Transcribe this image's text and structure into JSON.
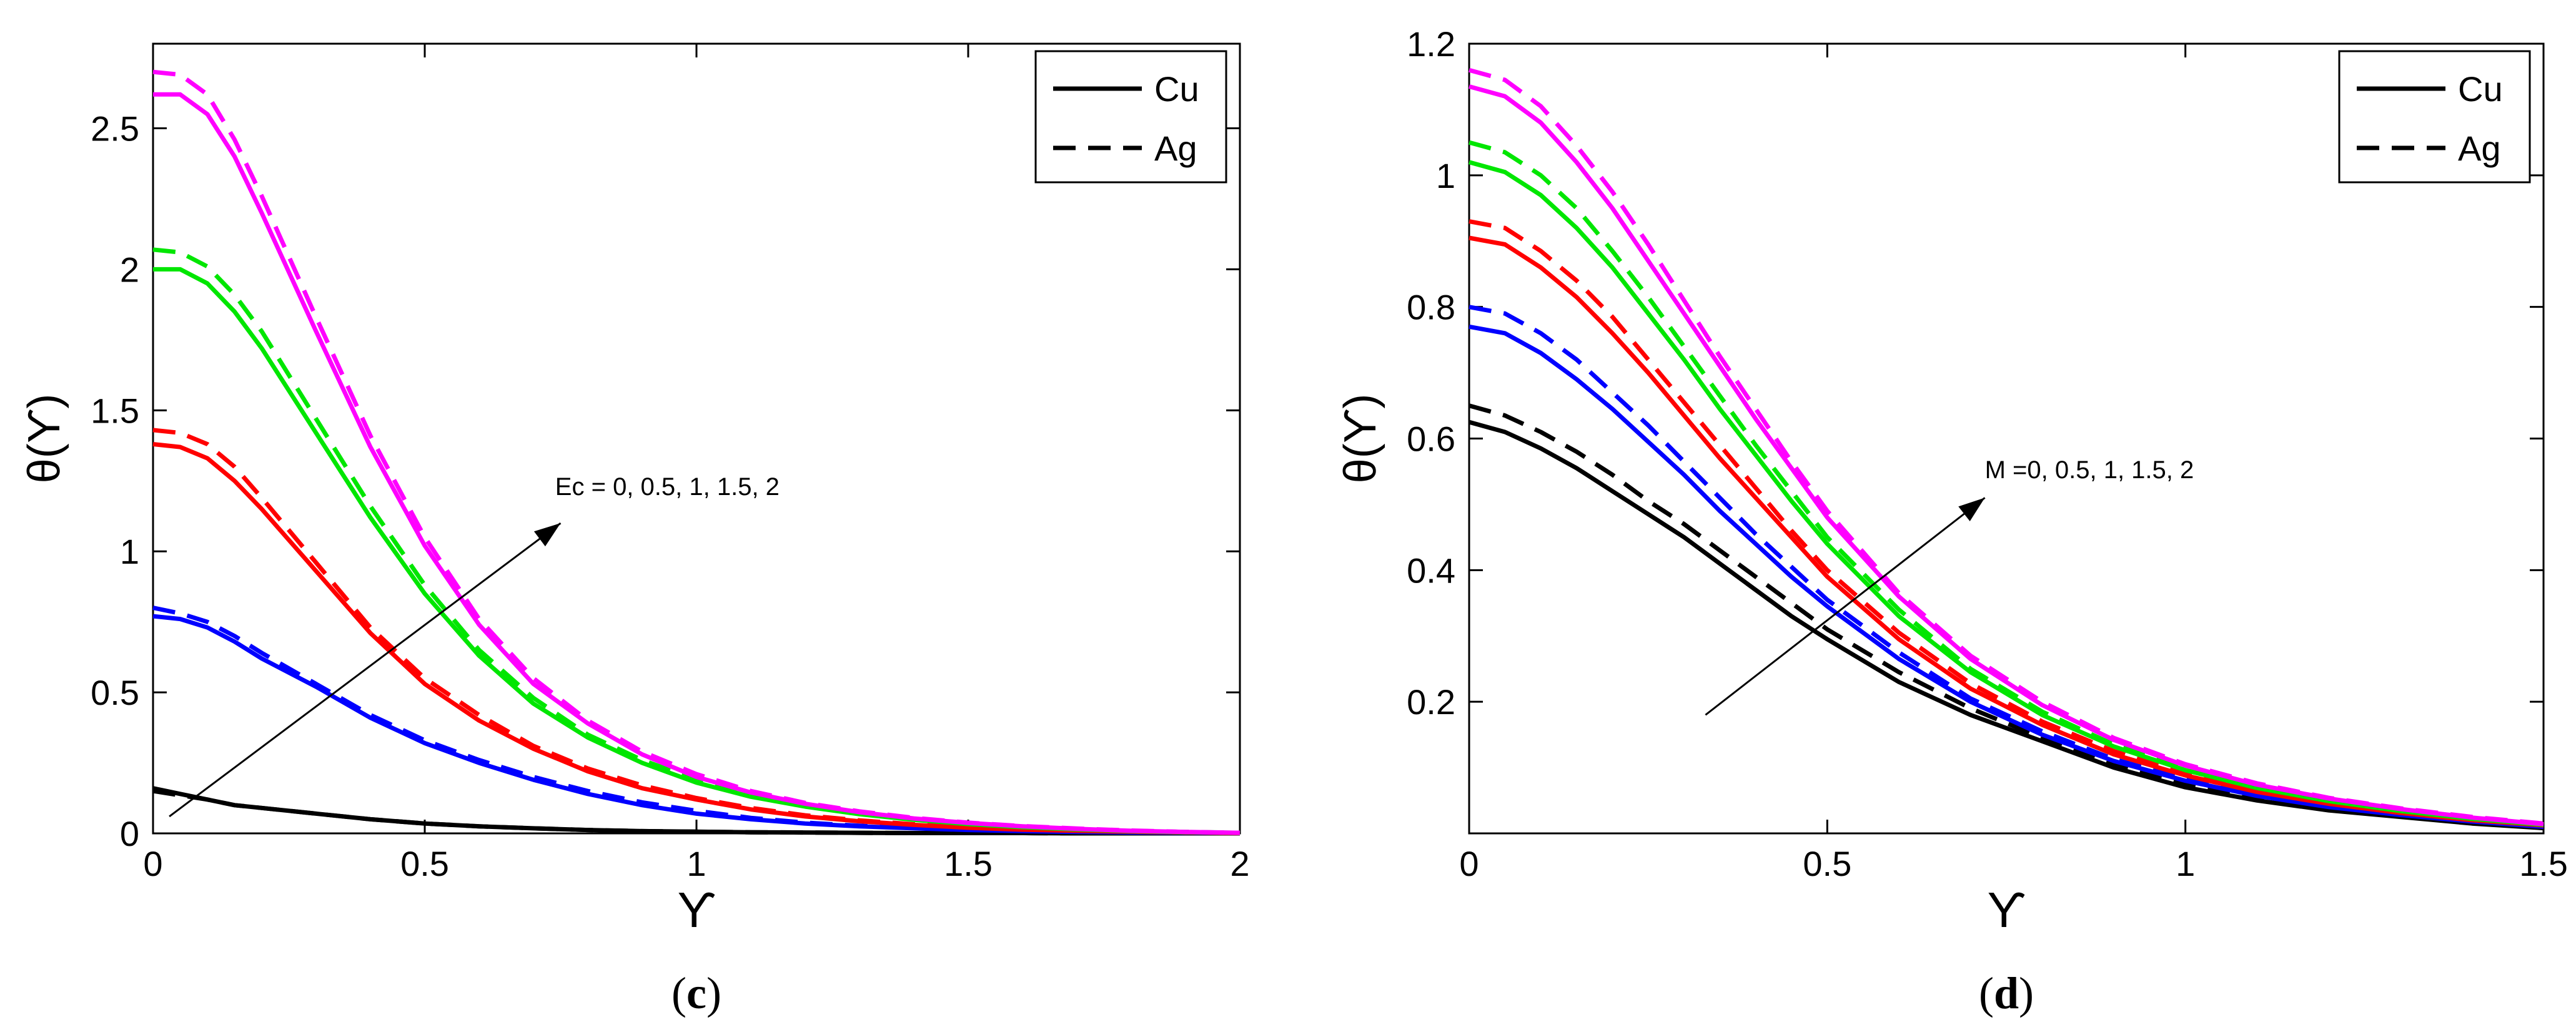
{
  "chart_data": [
    {
      "type": "line",
      "panel": "c",
      "caption": {
        "open": "(",
        "letter": "c",
        "close": ")"
      },
      "xlabel": "ϒ",
      "ylabel": "θ(ϒ)",
      "xlim": [
        0,
        2
      ],
      "ylim": [
        0,
        2.8
      ],
      "xticks": [
        0,
        0.5,
        1,
        1.5,
        2
      ],
      "xtick_labels": [
        "0",
        "0.5",
        "1",
        "1.5",
        "2"
      ],
      "yticks": [
        0,
        0.5,
        1,
        1.5,
        2,
        2.5
      ],
      "ytick_labels": [
        "0",
        "0.5",
        "1",
        "1.5",
        "2",
        "2.5"
      ],
      "legend": {
        "position": "top-right",
        "entries": [
          {
            "label": "Cu",
            "style": "solid"
          },
          {
            "label": "Ag",
            "style": "dashed"
          }
        ]
      },
      "annotation": {
        "text": "Ec = 0, 0.5, 1, 1.5, 2",
        "arrow_from": [
          0.03,
          0.06
        ],
        "arrow_to": [
          0.75,
          1.1
        ],
        "text_at": [
          0.74,
          1.2
        ]
      },
      "x": [
        0,
        0.05,
        0.1,
        0.15,
        0.2,
        0.3,
        0.4,
        0.5,
        0.6,
        0.7,
        0.8,
        0.9,
        1.0,
        1.1,
        1.2,
        1.3,
        1.4,
        1.5,
        1.6,
        1.7,
        1.8,
        1.9,
        2.0
      ],
      "series": [
        {
          "name": "Cu, Ec = 0",
          "fluid": "Cu",
          "param": "0",
          "color": "#000000",
          "dash": "solid",
          "values": [
            0.16,
            0.14,
            0.12,
            0.1,
            0.09,
            0.07,
            0.05,
            0.035,
            0.025,
            0.018,
            0.012,
            0.008,
            0.006,
            0.004,
            0.003,
            0.002,
            0.001,
            0.001,
            0.001,
            0.0,
            0.0,
            0.0,
            0.0
          ]
        },
        {
          "name": "Ag, Ec = 0",
          "fluid": "Ag",
          "param": "0",
          "color": "#000000",
          "dash": "dashed",
          "values": [
            0.15,
            0.135,
            0.12,
            0.1,
            0.09,
            0.07,
            0.05,
            0.035,
            0.025,
            0.018,
            0.012,
            0.008,
            0.006,
            0.004,
            0.003,
            0.002,
            0.001,
            0.001,
            0.001,
            0.0,
            0.0,
            0.0,
            0.0
          ]
        },
        {
          "name": "Cu, Ec = 0.5",
          "fluid": "Cu",
          "param": "0.5",
          "color": "#0000ff",
          "dash": "solid",
          "values": [
            0.77,
            0.76,
            0.73,
            0.68,
            0.62,
            0.52,
            0.41,
            0.32,
            0.25,
            0.19,
            0.14,
            0.1,
            0.07,
            0.05,
            0.035,
            0.025,
            0.018,
            0.012,
            0.008,
            0.005,
            0.003,
            0.002,
            0.001
          ]
        },
        {
          "name": "Ag, Ec = 0.5",
          "fluid": "Ag",
          "param": "0.5",
          "color": "#0000ff",
          "dash": "dashed",
          "values": [
            0.8,
            0.78,
            0.75,
            0.7,
            0.64,
            0.53,
            0.42,
            0.33,
            0.26,
            0.2,
            0.15,
            0.11,
            0.08,
            0.055,
            0.038,
            0.027,
            0.019,
            0.013,
            0.009,
            0.006,
            0.004,
            0.002,
            0.001
          ]
        },
        {
          "name": "Cu, Ec = 1",
          "fluid": "Cu",
          "param": "1",
          "color": "#ff0000",
          "dash": "solid",
          "values": [
            1.38,
            1.37,
            1.33,
            1.25,
            1.15,
            0.93,
            0.71,
            0.53,
            0.4,
            0.3,
            0.22,
            0.16,
            0.12,
            0.085,
            0.06,
            0.043,
            0.03,
            0.02,
            0.013,
            0.009,
            0.006,
            0.003,
            0.001
          ]
        },
        {
          "name": "Ag, Ec = 1",
          "fluid": "Ag",
          "param": "1",
          "color": "#ff0000",
          "dash": "dashed",
          "values": [
            1.43,
            1.42,
            1.38,
            1.3,
            1.19,
            0.96,
            0.73,
            0.55,
            0.42,
            0.31,
            0.23,
            0.17,
            0.125,
            0.09,
            0.064,
            0.046,
            0.032,
            0.022,
            0.015,
            0.01,
            0.006,
            0.003,
            0.001
          ]
        },
        {
          "name": "Cu, Ec = 1.5",
          "fluid": "Cu",
          "param": "1.5",
          "color": "#00e600",
          "dash": "solid",
          "values": [
            2.0,
            2.0,
            1.95,
            1.85,
            1.72,
            1.42,
            1.12,
            0.85,
            0.63,
            0.46,
            0.34,
            0.25,
            0.18,
            0.13,
            0.095,
            0.068,
            0.048,
            0.033,
            0.022,
            0.014,
            0.008,
            0.004,
            0.002
          ]
        },
        {
          "name": "Ag, Ec = 1.5",
          "fluid": "Ag",
          "param": "1.5",
          "color": "#00e600",
          "dash": "dashed",
          "values": [
            2.07,
            2.06,
            2.01,
            1.91,
            1.78,
            1.47,
            1.16,
            0.88,
            0.65,
            0.48,
            0.35,
            0.26,
            0.19,
            0.14,
            0.1,
            0.072,
            0.05,
            0.035,
            0.023,
            0.015,
            0.009,
            0.005,
            0.002
          ]
        },
        {
          "name": "Cu, Ec = 2",
          "fluid": "Cu",
          "param": "2",
          "color": "#ff00ff",
          "dash": "solid",
          "values": [
            2.62,
            2.62,
            2.55,
            2.4,
            2.2,
            1.78,
            1.37,
            1.02,
            0.74,
            0.53,
            0.39,
            0.28,
            0.2,
            0.145,
            0.105,
            0.075,
            0.053,
            0.037,
            0.025,
            0.016,
            0.009,
            0.005,
            0.002
          ]
        },
        {
          "name": "Ag, Ec = 2",
          "fluid": "Ag",
          "param": "2",
          "color": "#ff00ff",
          "dash": "dashed",
          "values": [
            2.7,
            2.69,
            2.62,
            2.46,
            2.26,
            1.83,
            1.41,
            1.05,
            0.76,
            0.55,
            0.4,
            0.29,
            0.21,
            0.15,
            0.108,
            0.078,
            0.055,
            0.038,
            0.026,
            0.017,
            0.01,
            0.005,
            0.002
          ]
        }
      ]
    },
    {
      "type": "line",
      "panel": "d",
      "caption": {
        "open": "(",
        "letter": "d",
        "close": ")"
      },
      "xlabel": "ϒ",
      "ylabel": "θ(ϒ)",
      "xlim": [
        0,
        1.5
      ],
      "ylim": [
        0,
        1.2
      ],
      "xticks": [
        0,
        0.5,
        1,
        1.5
      ],
      "xtick_labels": [
        "0",
        "0.5",
        "1",
        "1.5"
      ],
      "yticks": [
        0.2,
        0.4,
        0.6,
        0.8,
        1.0,
        1.2
      ],
      "ytick_labels": [
        "0.2",
        "0.4",
        "0.6",
        "0.8",
        "1",
        "1.2"
      ],
      "legend": {
        "position": "top-right",
        "entries": [
          {
            "label": "Cu",
            "style": "solid"
          },
          {
            "label": "Ag",
            "style": "dashed"
          }
        ]
      },
      "annotation": {
        "text": "M =0, 0.5, 1, 1.5, 2",
        "arrow_from": [
          0.33,
          0.18
        ],
        "arrow_to": [
          0.72,
          0.51
        ],
        "text_at": [
          0.72,
          0.54
        ]
      },
      "x": [
        0,
        0.05,
        0.1,
        0.15,
        0.2,
        0.25,
        0.3,
        0.35,
        0.4,
        0.45,
        0.5,
        0.6,
        0.7,
        0.8,
        0.9,
        1.0,
        1.1,
        1.2,
        1.3,
        1.4,
        1.5
      ],
      "series": [
        {
          "name": "Cu, M = 0",
          "fluid": "Cu",
          "param": "0",
          "color": "#000000",
          "dash": "solid",
          "values": [
            0.625,
            0.61,
            0.585,
            0.555,
            0.52,
            0.485,
            0.45,
            0.41,
            0.37,
            0.33,
            0.295,
            0.23,
            0.18,
            0.14,
            0.1,
            0.07,
            0.05,
            0.035,
            0.025,
            0.015,
            0.008
          ]
        },
        {
          "name": "Ag, M = 0",
          "fluid": "Ag",
          "param": "0",
          "color": "#000000",
          "dash": "dashed",
          "values": [
            0.65,
            0.635,
            0.61,
            0.58,
            0.545,
            0.505,
            0.47,
            0.43,
            0.39,
            0.35,
            0.31,
            0.245,
            0.19,
            0.145,
            0.105,
            0.075,
            0.053,
            0.037,
            0.026,
            0.016,
            0.009
          ]
        },
        {
          "name": "Cu, M = 0.5",
          "fluid": "Cu",
          "param": "0.5",
          "color": "#0000ff",
          "dash": "solid",
          "values": [
            0.77,
            0.76,
            0.73,
            0.69,
            0.645,
            0.595,
            0.545,
            0.49,
            0.44,
            0.39,
            0.345,
            0.265,
            0.2,
            0.15,
            0.11,
            0.08,
            0.057,
            0.04,
            0.028,
            0.018,
            0.01
          ]
        },
        {
          "name": "Ag, M = 0.5",
          "fluid": "Ag",
          "param": "0.5",
          "color": "#0000ff",
          "dash": "dashed",
          "values": [
            0.8,
            0.79,
            0.76,
            0.72,
            0.67,
            0.62,
            0.565,
            0.51,
            0.455,
            0.405,
            0.355,
            0.275,
            0.205,
            0.155,
            0.113,
            0.082,
            0.059,
            0.041,
            0.029,
            0.019,
            0.011
          ]
        },
        {
          "name": "Cu, M = 1",
          "fluid": "Cu",
          "param": "1",
          "color": "#ff0000",
          "dash": "solid",
          "values": [
            0.905,
            0.895,
            0.86,
            0.815,
            0.76,
            0.7,
            0.635,
            0.57,
            0.51,
            0.45,
            0.39,
            0.295,
            0.22,
            0.165,
            0.12,
            0.088,
            0.063,
            0.045,
            0.031,
            0.02,
            0.012
          ]
        },
        {
          "name": "Ag, M = 1",
          "fluid": "Ag",
          "param": "1",
          "color": "#ff0000",
          "dash": "dashed",
          "values": [
            0.93,
            0.92,
            0.885,
            0.84,
            0.785,
            0.72,
            0.655,
            0.59,
            0.525,
            0.46,
            0.4,
            0.305,
            0.228,
            0.17,
            0.125,
            0.09,
            0.065,
            0.046,
            0.032,
            0.021,
            0.012
          ]
        },
        {
          "name": "Cu, M = 1.5",
          "fluid": "Cu",
          "param": "1.5",
          "color": "#00e600",
          "dash": "solid",
          "values": [
            1.02,
            1.005,
            0.97,
            0.92,
            0.86,
            0.79,
            0.72,
            0.645,
            0.575,
            0.505,
            0.44,
            0.33,
            0.245,
            0.18,
            0.132,
            0.096,
            0.069,
            0.049,
            0.034,
            0.022,
            0.013
          ]
        },
        {
          "name": "Ag, M = 1.5",
          "fluid": "Ag",
          "param": "1.5",
          "color": "#00e600",
          "dash": "dashed",
          "values": [
            1.05,
            1.035,
            1.0,
            0.95,
            0.885,
            0.815,
            0.74,
            0.665,
            0.59,
            0.52,
            0.45,
            0.34,
            0.25,
            0.185,
            0.135,
            0.098,
            0.07,
            0.05,
            0.035,
            0.023,
            0.014
          ]
        },
        {
          "name": "Cu, M = 2",
          "fluid": "Cu",
          "param": "2",
          "color": "#ff00ff",
          "dash": "solid",
          "values": [
            1.135,
            1.12,
            1.08,
            1.02,
            0.95,
            0.87,
            0.79,
            0.71,
            0.63,
            0.555,
            0.48,
            0.36,
            0.265,
            0.195,
            0.142,
            0.103,
            0.074,
            0.053,
            0.037,
            0.024,
            0.014
          ]
        },
        {
          "name": "Ag, M = 2",
          "fluid": "Ag",
          "param": "2",
          "color": "#ff00ff",
          "dash": "dashed",
          "values": [
            1.16,
            1.145,
            1.105,
            1.045,
            0.975,
            0.895,
            0.81,
            0.725,
            0.645,
            0.565,
            0.49,
            0.365,
            0.27,
            0.2,
            0.145,
            0.105,
            0.076,
            0.054,
            0.038,
            0.025,
            0.015
          ]
        }
      ]
    }
  ]
}
